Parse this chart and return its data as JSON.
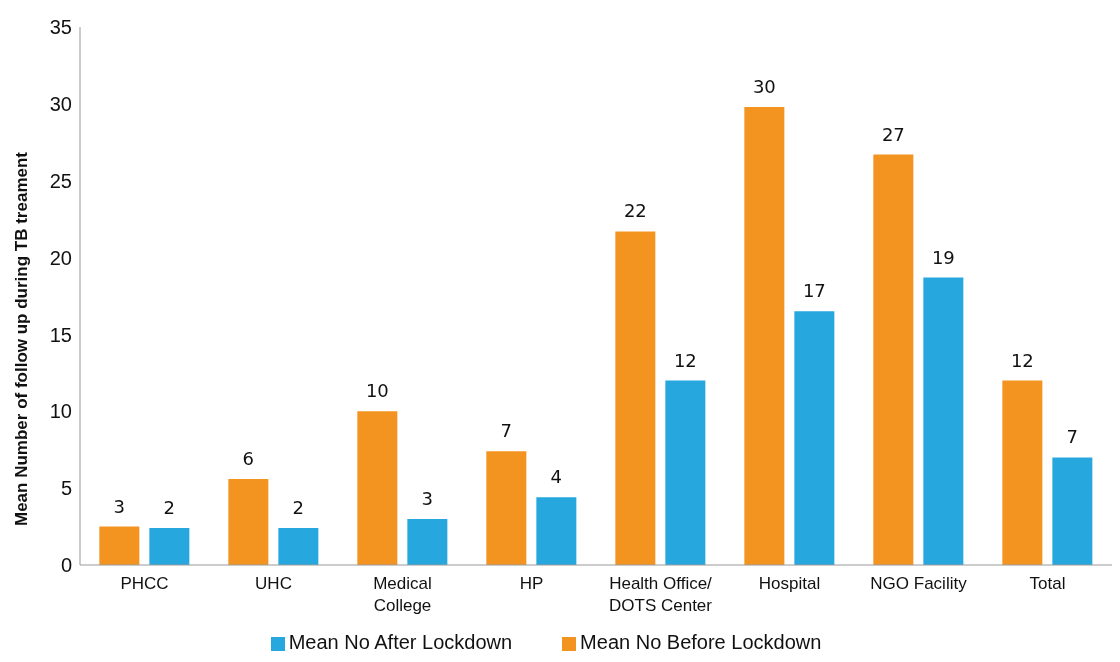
{
  "chart_data": {
    "type": "bar",
    "ylabel": "Mean Number of follow up during TB treament",
    "categories": [
      "PHCC",
      "UHC",
      "Medical College",
      "HP",
      "Health Office/ DOTS Center",
      "Hospital",
      "NGO Facility",
      "Total"
    ],
    "series": [
      {
        "name": "Mean No Before Lockdown",
        "color": "#f39320",
        "values": [
          2.5,
          5.6,
          10,
          7.4,
          21.7,
          29.8,
          26.7,
          12
        ],
        "value_labels": [
          "3",
          "6",
          "10",
          "7",
          "22",
          "30",
          "27",
          "12"
        ]
      },
      {
        "name": "Mean No After Lockdown",
        "color": "#26a8df",
        "values": [
          2.4,
          2.4,
          3,
          4.4,
          12,
          16.5,
          18.7,
          7
        ],
        "value_labels": [
          "2",
          "2",
          "3",
          "4",
          "12",
          "17",
          "19",
          "7"
        ]
      }
    ],
    "ylim": [
      0,
      35
    ],
    "yticks": [
      0,
      5,
      10,
      15,
      20,
      25,
      30,
      35
    ],
    "grid": false,
    "legend": "bottom"
  }
}
